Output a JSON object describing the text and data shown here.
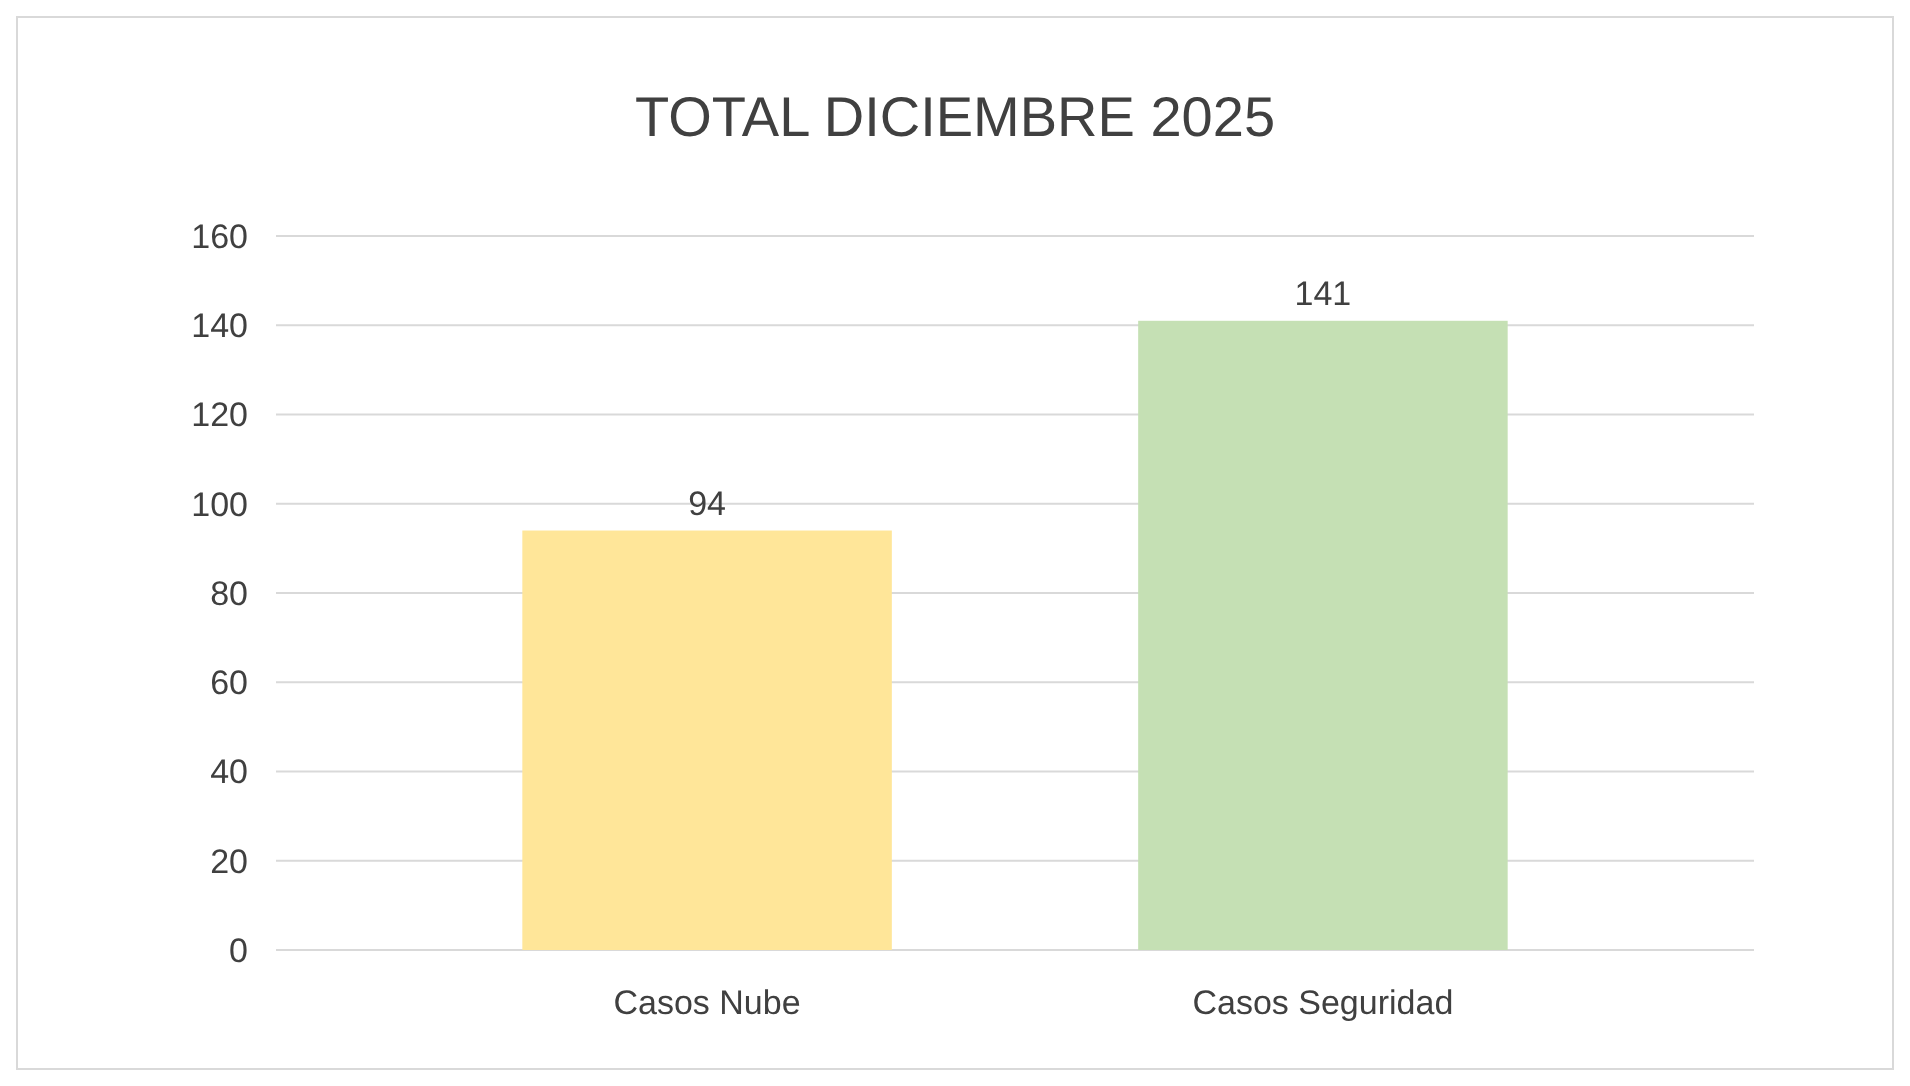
{
  "chart_data": {
    "type": "bar",
    "title": "TOTAL DICIEMBRE 2025",
    "categories": [
      "Casos Nube",
      "Casos Seguridad"
    ],
    "values": [
      94,
      141
    ],
    "colors": [
      "#ffe699",
      "#c5e0b4"
    ],
    "ylim": [
      0,
      160
    ],
    "yticks": [
      0,
      20,
      40,
      60,
      80,
      100,
      120,
      140,
      160
    ],
    "grid": "y",
    "data_labels": true
  }
}
